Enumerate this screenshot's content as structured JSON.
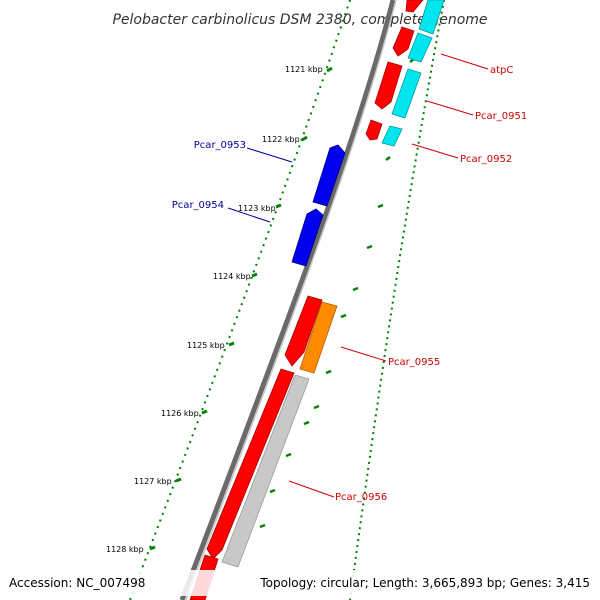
{
  "title": "Pelobacter carbinolicus DSM 2380, complete genome",
  "footer": {
    "accession": "Accession: NC_007498",
    "summary": "Topology: circular; Length: 3,665,893 bp; Genes: 3,415"
  },
  "ticks": [
    "1121 kbp",
    "1122 kbp",
    "1123 kbp",
    "1124 kbp",
    "1125 kbp",
    "1126 kbp",
    "1127 kbp",
    "1128 kbp"
  ],
  "genes": {
    "atpC": "atpC",
    "pcar0951": "Pcar_0951",
    "pcar0952": "Pcar_0952",
    "pcar0953": "Pcar_0953",
    "pcar0954": "Pcar_0954",
    "pcar0955": "Pcar_0955",
    "pcar0956": "Pcar_0956"
  },
  "colors": {
    "forward_cds": "#ff0000",
    "reverse_cds": "#0000ee",
    "forward_label": "#cc0000",
    "reverse_label": "#000099",
    "cyan_feature": "#00e5ee",
    "orange_feature": "#ff8c00",
    "gray_feature": "#c8c8c8",
    "backbone": "#7a7a7a",
    "tick_marks": "#008000"
  }
}
